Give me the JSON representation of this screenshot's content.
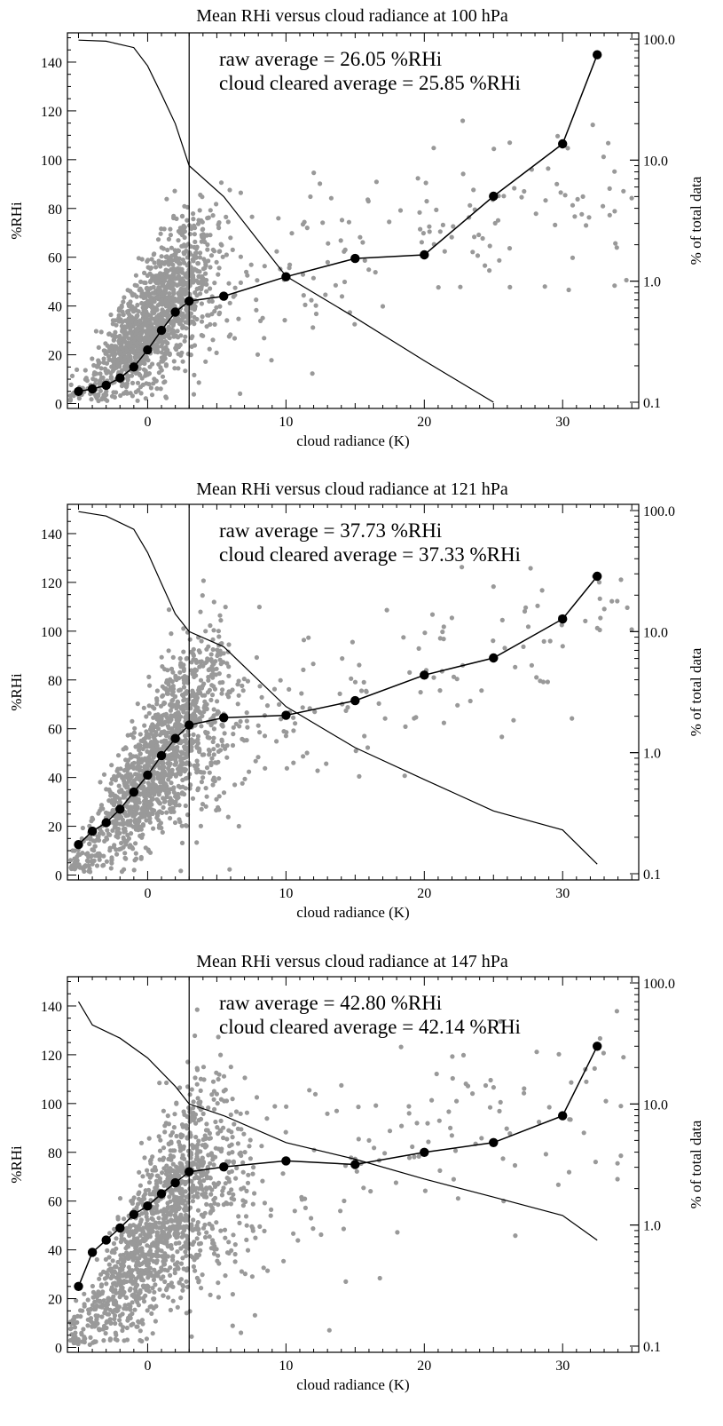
{
  "chart_data": [
    {
      "type": "scatter",
      "title": "Mean RHi versus cloud radiance at 100 hPa",
      "xlabel": "cloud radiance (K)",
      "ylabel": "%RHi",
      "y2label": "% of total data",
      "y2scale": "log",
      "xlim": [
        -5.8,
        35.5
      ],
      "ylim": [
        -2,
        152
      ],
      "y2lim": [
        0.1,
        100.0
      ],
      "x_ticks": [
        0,
        10,
        20,
        30
      ],
      "y_ticks": [
        0,
        20,
        40,
        60,
        80,
        100,
        120,
        140
      ],
      "y2_ticks": [
        "0.1",
        "1.0",
        "10.0",
        "100.0"
      ],
      "annotations": [
        "raw average = 26.05 %RHi",
        "cloud cleared average = 25.85 %RHi"
      ],
      "vline_x": 3,
      "scatter": {
        "color": "#999999",
        "x_center": 0.5,
        "x_spread": 2.2,
        "rhi_base": 26,
        "rhi_spread": 12
      },
      "mean_series": {
        "x": [
          -5,
          -4,
          -3,
          -2,
          -1,
          0,
          1,
          2,
          3,
          5.5,
          10,
          15,
          20,
          25,
          30,
          32.5
        ],
        "y": [
          5,
          6,
          7.5,
          10.5,
          15,
          22,
          30,
          37.5,
          42,
          44,
          52,
          59.5,
          61,
          85,
          106.5,
          143
        ]
      },
      "percent_series": {
        "x": [
          -5,
          -3,
          -1,
          0,
          1,
          2,
          3,
          5.5,
          10,
          15,
          20,
          25
        ],
        "y": [
          98,
          96,
          85,
          60,
          35,
          20,
          9,
          5,
          1.1,
          0.5,
          0.22,
          0.1
        ]
      }
    },
    {
      "type": "scatter",
      "title": "Mean RHi versus cloud radiance at 121 hPa",
      "xlabel": "cloud radiance (K)",
      "ylabel": "%RHi",
      "y2label": "% of total data",
      "y2scale": "log",
      "xlim": [
        -5.8,
        35.5
      ],
      "ylim": [
        -2,
        152
      ],
      "y2lim": [
        0.1,
        100.0
      ],
      "x_ticks": [
        0,
        10,
        20,
        30
      ],
      "y_ticks": [
        0,
        20,
        40,
        60,
        80,
        100,
        120,
        140
      ],
      "y2_ticks": [
        "0.1",
        "1.0",
        "10.0",
        "100.0"
      ],
      "annotations": [
        "raw average = 37.73 %RHi",
        "cloud cleared average = 37.33 %RHi"
      ],
      "vline_x": 3,
      "scatter": {
        "color": "#999999",
        "x_center": 0.8,
        "x_spread": 2.6,
        "rhi_base": 38,
        "rhi_spread": 14
      },
      "mean_series": {
        "x": [
          -5,
          -4,
          -3,
          -2,
          -1,
          0,
          1,
          2,
          3,
          5.5,
          10,
          15,
          20,
          25,
          30,
          32.5
        ],
        "y": [
          12.5,
          18,
          21.5,
          27,
          34,
          41,
          49,
          56,
          61.5,
          64.5,
          65.5,
          71.5,
          82,
          89,
          105,
          122.5
        ]
      },
      "percent_series": {
        "x": [
          -5,
          -3,
          -1,
          0,
          1,
          2,
          3,
          5.5,
          10,
          15,
          20,
          25,
          30,
          32.5
        ],
        "y": [
          98,
          90,
          70,
          45,
          25,
          14,
          10,
          7.5,
          2.4,
          1.1,
          0.6,
          0.33,
          0.23,
          0.12
        ]
      }
    },
    {
      "type": "scatter",
      "title": "Mean RHi versus cloud radiance at 147 hPa",
      "xlabel": "cloud radiance (K)",
      "ylabel": "%RHi",
      "y2label": "% of total data",
      "y2scale": "log",
      "xlim": [
        -5.8,
        35.5
      ],
      "ylim": [
        -2,
        152
      ],
      "y2lim": [
        0.1,
        100.0
      ],
      "x_ticks": [
        0,
        10,
        20,
        30
      ],
      "y_ticks": [
        0,
        20,
        40,
        60,
        80,
        100,
        120,
        140
      ],
      "y2_ticks": [
        "0.1",
        "1.0",
        "10.0",
        "100.0"
      ],
      "annotations": [
        "raw average = 42.80 %RHi",
        "cloud cleared average = 42.14 %RHi"
      ],
      "vline_x": 3,
      "scatter": {
        "color": "#999999",
        "x_center": 1.0,
        "x_spread": 3.0,
        "rhi_base": 43,
        "rhi_spread": 16
      },
      "mean_series": {
        "x": [
          -5,
          -4,
          -3,
          -2,
          -1,
          0,
          1,
          2,
          3,
          5.5,
          10,
          15,
          20,
          25,
          30,
          32.5
        ],
        "y": [
          25,
          39,
          44,
          49,
          54.5,
          58,
          63,
          67.5,
          72,
          74,
          76.5,
          75,
          80,
          84,
          95,
          123.5
        ]
      },
      "percent_series": {
        "x": [
          -5,
          -4,
          -2,
          0,
          2,
          3,
          5.5,
          10,
          15,
          20,
          25,
          30,
          32.5
        ],
        "y": [
          70,
          45,
          35,
          24,
          14,
          10,
          8,
          4.8,
          3.5,
          2.4,
          1.7,
          1.2,
          0.75
        ]
      }
    }
  ]
}
